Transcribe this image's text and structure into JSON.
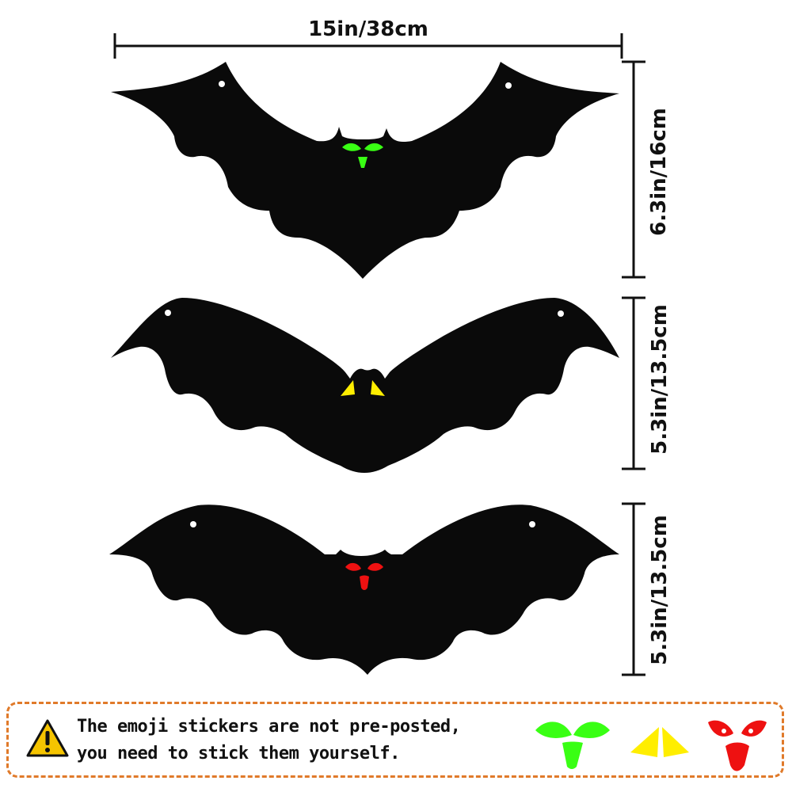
{
  "dimensions": {
    "top_width": "15in/38cm",
    "bat1_height": "6.3in/16cm",
    "bat2_height": "5.3in/13.5cm",
    "bat3_height": "5.3in/13.5cm"
  },
  "notice": {
    "line1": "The emoji stickers are not pre-posted,",
    "line2": "you need to stick them yourself."
  },
  "colors": {
    "bat": "#0a0a0a",
    "sticker_green": "#39ff14",
    "sticker_yellow": "#ffee00",
    "sticker_red": "#ee1111",
    "border": "#e07a2a",
    "warning": "#f5c400"
  },
  "icons": [
    "warning-icon",
    "green-sticker-icon",
    "yellow-sticker-icon",
    "red-sticker-icon"
  ]
}
